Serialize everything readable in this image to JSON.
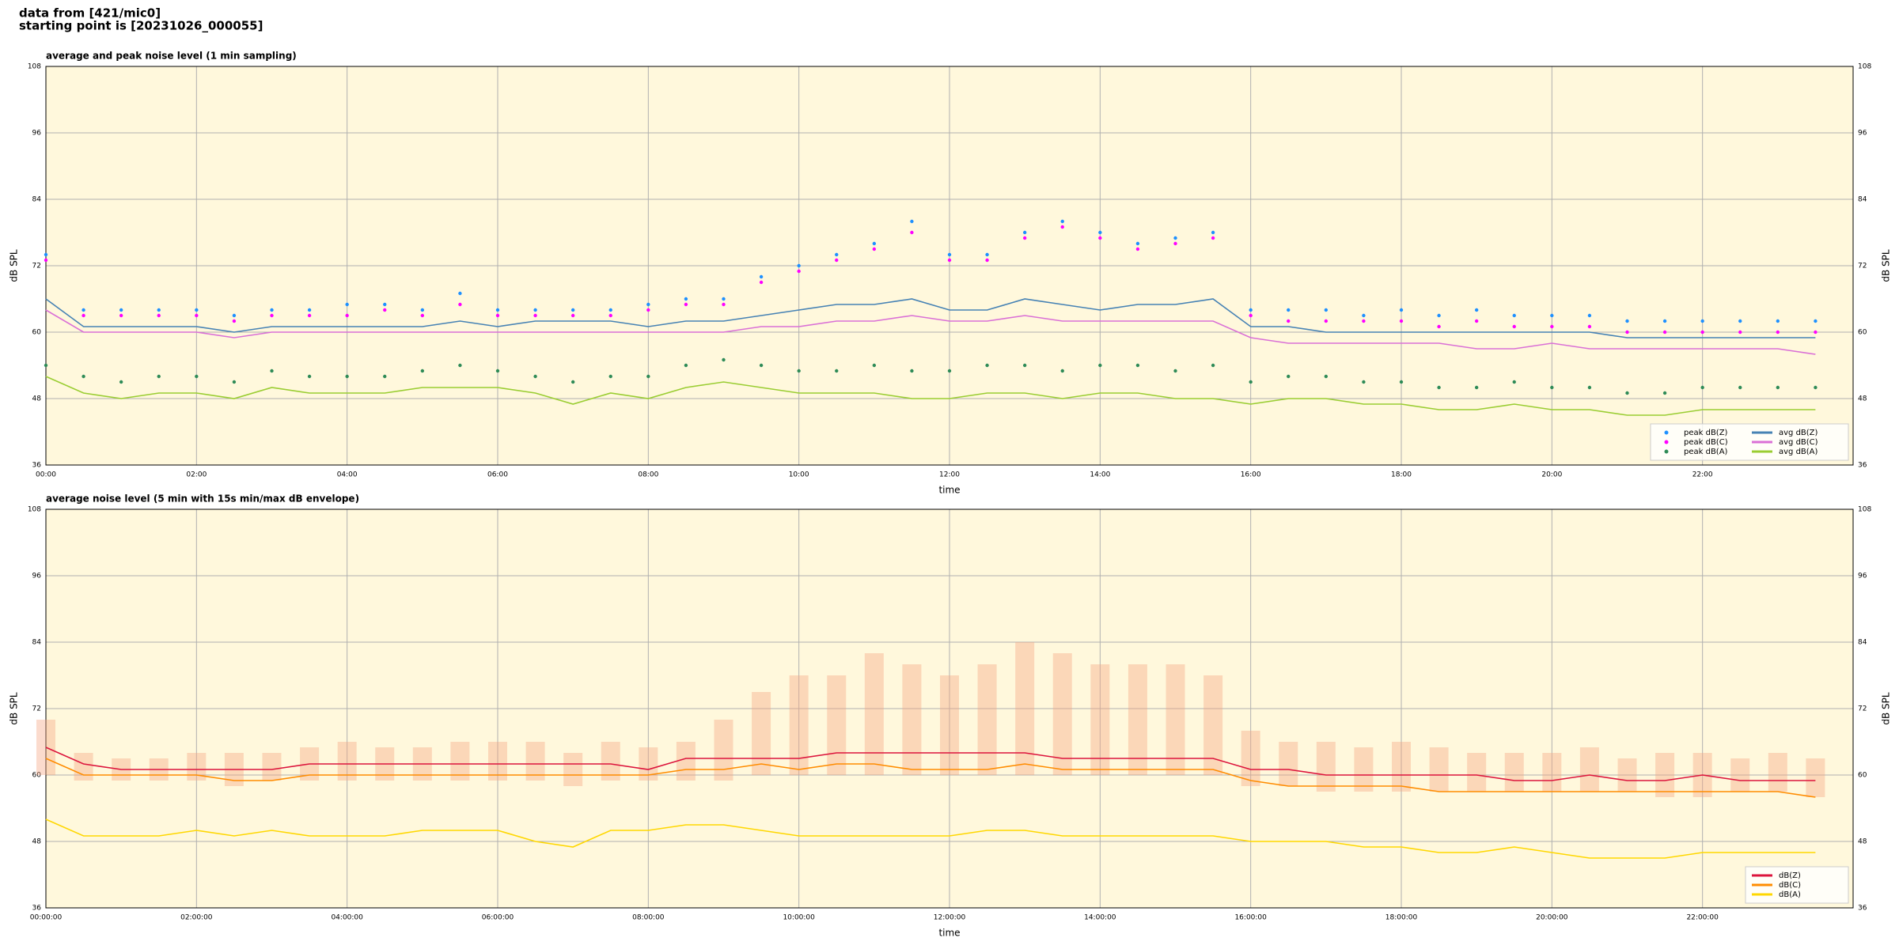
{
  "suptitle": [
    "data from [421/mic0]",
    "starting point is [20231026_000055]"
  ],
  "chart_data": [
    {
      "type": "line",
      "title": "average and peak noise level (1 min sampling)",
      "xlabel": "time",
      "ylabel": "dB SPL",
      "x": [
        0,
        0.5,
        1,
        1.5,
        2,
        2.5,
        3,
        3.5,
        4,
        4.5,
        5,
        5.5,
        6,
        6.5,
        7,
        7.5,
        8,
        8.5,
        9,
        9.5,
        10,
        10.5,
        11,
        11.5,
        12,
        12.5,
        13,
        13.5,
        14,
        14.5,
        15,
        15.5,
        16,
        16.5,
        17,
        17.5,
        18,
        18.5,
        19,
        19.5,
        20,
        20.5,
        21,
        21.5,
        22,
        22.5,
        23,
        23.5
      ],
      "xlim": [
        0,
        24
      ],
      "xticks": [
        {
          "value": 0,
          "label": "00:00"
        },
        {
          "value": 2,
          "label": "02:00"
        },
        {
          "value": 4,
          "label": "04:00"
        },
        {
          "value": 6,
          "label": "06:00"
        },
        {
          "value": 8,
          "label": "08:00"
        },
        {
          "value": 10,
          "label": "10:00"
        },
        {
          "value": 12,
          "label": "12:00"
        },
        {
          "value": 14,
          "label": "14:00"
        },
        {
          "value": 16,
          "label": "16:00"
        },
        {
          "value": 18,
          "label": "18:00"
        },
        {
          "value": 20,
          "label": "20:00"
        },
        {
          "value": 22,
          "label": "22:00"
        }
      ],
      "ylim": [
        36,
        108
      ],
      "yticks": [
        36,
        48,
        60,
        72,
        84,
        96,
        108
      ],
      "grid": true,
      "legend": "lower right",
      "series": [
        {
          "name": "peak dB(Z)",
          "kind": "scatter",
          "color": "#1e90ff",
          "values": [
            74,
            64,
            64,
            64,
            64,
            63,
            64,
            64,
            65,
            65,
            64,
            67,
            64,
            64,
            64,
            64,
            65,
            66,
            66,
            70,
            72,
            74,
            76,
            80,
            74,
            74,
            78,
            80,
            78,
            76,
            77,
            78,
            64,
            64,
            64,
            63,
            64,
            63,
            64,
            63,
            63,
            63,
            62,
            62,
            62,
            62,
            62,
            62
          ]
        },
        {
          "name": "peak dB(C)",
          "kind": "scatter",
          "color": "#ff00ff",
          "values": [
            73,
            63,
            63,
            63,
            63,
            62,
            63,
            63,
            63,
            64,
            63,
            65,
            63,
            63,
            63,
            63,
            64,
            65,
            65,
            69,
            71,
            73,
            75,
            78,
            73,
            73,
            77,
            79,
            77,
            75,
            76,
            77,
            63,
            62,
            62,
            62,
            62,
            61,
            62,
            61,
            61,
            61,
            60,
            60,
            60,
            60,
            60,
            60
          ]
        },
        {
          "name": "peak dB(A)",
          "kind": "scatter",
          "color": "#2e8b57",
          "values": [
            54,
            52,
            51,
            52,
            52,
            51,
            53,
            52,
            52,
            52,
            53,
            54,
            53,
            52,
            51,
            52,
            52,
            54,
            55,
            54,
            53,
            53,
            54,
            53,
            53,
            54,
            54,
            53,
            54,
            54,
            53,
            54,
            51,
            52,
            52,
            51,
            51,
            50,
            50,
            51,
            50,
            50,
            49,
            49,
            50,
            50,
            50,
            50
          ]
        },
        {
          "name": "avg dB(Z)",
          "kind": "line",
          "color": "#4682b4",
          "values": [
            66,
            61,
            61,
            61,
            61,
            60,
            61,
            61,
            61,
            61,
            61,
            62,
            61,
            62,
            62,
            62,
            61,
            62,
            62,
            63,
            64,
            65,
            65,
            66,
            64,
            64,
            66,
            65,
            64,
            65,
            65,
            66,
            61,
            61,
            60,
            60,
            60,
            60,
            60,
            60,
            60,
            60,
            59,
            59,
            59,
            59,
            59,
            59
          ]
        },
        {
          "name": "avg dB(C)",
          "kind": "line",
          "color": "#da70d6",
          "values": [
            64,
            60,
            60,
            60,
            60,
            59,
            60,
            60,
            60,
            60,
            60,
            60,
            60,
            60,
            60,
            60,
            60,
            60,
            60,
            61,
            61,
            62,
            62,
            63,
            62,
            62,
            63,
            62,
            62,
            62,
            62,
            62,
            59,
            58,
            58,
            58,
            58,
            58,
            57,
            57,
            58,
            57,
            57,
            57,
            57,
            57,
            57,
            56
          ]
        },
        {
          "name": "avg dB(A)",
          "kind": "line",
          "color": "#9acd32",
          "values": [
            52,
            49,
            48,
            49,
            49,
            48,
            50,
            49,
            49,
            49,
            50,
            50,
            50,
            49,
            47,
            49,
            48,
            50,
            51,
            50,
            49,
            49,
            49,
            48,
            48,
            49,
            49,
            48,
            49,
            49,
            48,
            48,
            47,
            48,
            48,
            47,
            47,
            46,
            46,
            47,
            46,
            46,
            45,
            45,
            46,
            46,
            46,
            46
          ]
        }
      ]
    },
    {
      "type": "line",
      "title": "average noise level (5 min with 15s min/max dB envelope)",
      "xlabel": "time",
      "ylabel": "dB SPL",
      "x": [
        0,
        0.5,
        1,
        1.5,
        2,
        2.5,
        3,
        3.5,
        4,
        4.5,
        5,
        5.5,
        6,
        6.5,
        7,
        7.5,
        8,
        8.5,
        9,
        9.5,
        10,
        10.5,
        11,
        11.5,
        12,
        12.5,
        13,
        13.5,
        14,
        14.5,
        15,
        15.5,
        16,
        16.5,
        17,
        17.5,
        18,
        18.5,
        19,
        19.5,
        20,
        20.5,
        21,
        21.5,
        22,
        22.5,
        23,
        23.5
      ],
      "xlim": [
        0,
        24
      ],
      "xticks": [
        {
          "value": 0,
          "label": "00:00:00"
        },
        {
          "value": 2,
          "label": "02:00:00"
        },
        {
          "value": 4,
          "label": "04:00:00"
        },
        {
          "value": 6,
          "label": "06:00:00"
        },
        {
          "value": 8,
          "label": "08:00:00"
        },
        {
          "value": 10,
          "label": "10:00:00"
        },
        {
          "value": 12,
          "label": "12:00:00"
        },
        {
          "value": 14,
          "label": "14:00:00"
        },
        {
          "value": 16,
          "label": "16:00:00"
        },
        {
          "value": 18,
          "label": "18:00:00"
        },
        {
          "value": 20,
          "label": "20:00:00"
        },
        {
          "value": 22,
          "label": "22:00:00"
        }
      ],
      "ylim": [
        36,
        108
      ],
      "yticks": [
        36,
        48,
        60,
        72,
        84,
        96,
        108
      ],
      "grid": true,
      "legend": "lower right",
      "envelope": {
        "color": "#f4a582",
        "upper": [
          70,
          64,
          63,
          63,
          64,
          64,
          64,
          65,
          66,
          65,
          65,
          66,
          66,
          66,
          64,
          66,
          65,
          66,
          70,
          75,
          78,
          78,
          82,
          80,
          78,
          80,
          84,
          82,
          80,
          80,
          80,
          78,
          68,
          66,
          66,
          65,
          66,
          65,
          64,
          64,
          64,
          65,
          63,
          64,
          64,
          63,
          64,
          63
        ],
        "lower": [
          60,
          59,
          59,
          59,
          59,
          58,
          59,
          59,
          59,
          59,
          59,
          59,
          59,
          59,
          58,
          59,
          59,
          59,
          59,
          60,
          60,
          60,
          60,
          60,
          60,
          60,
          60,
          60,
          60,
          60,
          60,
          60,
          58,
          58,
          57,
          57,
          57,
          57,
          57,
          57,
          57,
          57,
          57,
          56,
          56,
          57,
          57,
          56
        ]
      },
      "series": [
        {
          "name": "dB(Z)",
          "kind": "line",
          "color": "#dc143c",
          "values": [
            65,
            62,
            61,
            61,
            61,
            61,
            61,
            62,
            62,
            62,
            62,
            62,
            62,
            62,
            62,
            62,
            61,
            63,
            63,
            63,
            63,
            64,
            64,
            64,
            64,
            64,
            64,
            63,
            63,
            63,
            63,
            63,
            61,
            61,
            60,
            60,
            60,
            60,
            60,
            59,
            59,
            60,
            59,
            59,
            60,
            59,
            59,
            59
          ]
        },
        {
          "name": "dB(C)",
          "kind": "line",
          "color": "#ff8c00",
          "values": [
            63,
            60,
            60,
            60,
            60,
            59,
            59,
            60,
            60,
            60,
            60,
            60,
            60,
            60,
            60,
            60,
            60,
            61,
            61,
            62,
            61,
            62,
            62,
            61,
            61,
            61,
            62,
            61,
            61,
            61,
            61,
            61,
            59,
            58,
            58,
            58,
            58,
            57,
            57,
            57,
            57,
            57,
            57,
            57,
            57,
            57,
            57,
            56
          ]
        },
        {
          "name": "dB(A)",
          "kind": "line",
          "color": "#ffd700",
          "values": [
            52,
            49,
            49,
            49,
            50,
            49,
            50,
            49,
            49,
            49,
            50,
            50,
            50,
            48,
            47,
            50,
            50,
            51,
            51,
            50,
            49,
            49,
            49,
            49,
            49,
            50,
            50,
            49,
            49,
            49,
            49,
            49,
            48,
            48,
            48,
            47,
            47,
            46,
            46,
            47,
            46,
            45,
            45,
            45,
            46,
            46,
            46,
            46
          ]
        }
      ]
    }
  ]
}
